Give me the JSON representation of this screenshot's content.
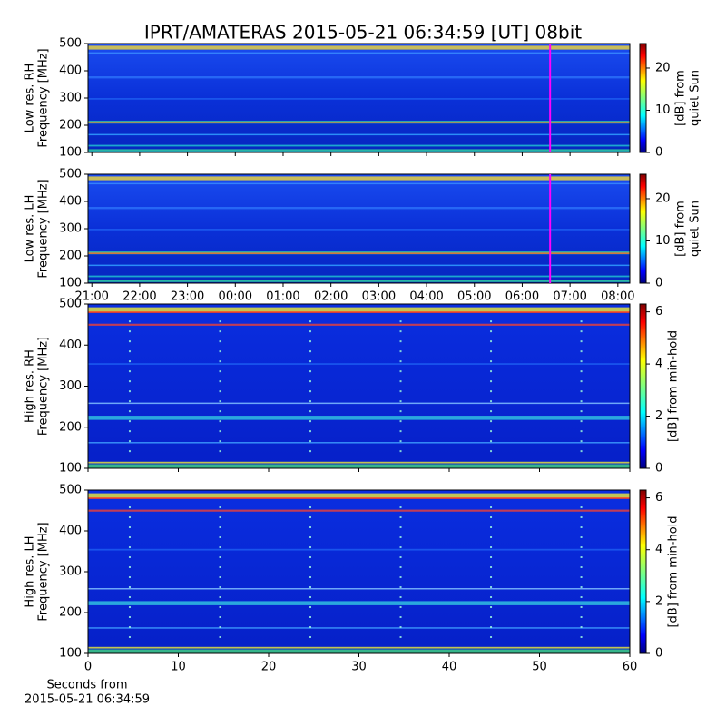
{
  "title": "IPRT/AMATERAS 2015-05-21 06:34:59 [UT]   08bit",
  "chart_data": [
    {
      "type": "heatmap",
      "ylabel": [
        "Low res. RH",
        "Frequency [MHz]"
      ],
      "ylim": [
        100,
        500
      ],
      "yticks": [
        100,
        200,
        300,
        400,
        500
      ],
      "xlim": [
        20.92,
        32.25
      ],
      "marker_x": 30.583,
      "marker_color": "#ff00ff",
      "colorbar": {
        "label": [
          "[dB] from",
          "quiet Sun"
        ],
        "lim": [
          0,
          25.8
        ],
        "ticks": [
          0,
          10,
          20
        ],
        "colormap": "jet"
      }
    },
    {
      "type": "heatmap",
      "ylabel": [
        "Low res. LH",
        "Frequency [MHz]"
      ],
      "ylim": [
        100,
        500
      ],
      "yticks": [
        100,
        200,
        300,
        400,
        500
      ],
      "xlim": [
        20.92,
        32.25
      ],
      "xticks": [
        {
          "value": 21,
          "label": "21:00"
        },
        {
          "value": 22,
          "label": "22:00"
        },
        {
          "value": 23,
          "label": "23:00"
        },
        {
          "value": 24,
          "label": "00:00"
        },
        {
          "value": 25,
          "label": "01:00"
        },
        {
          "value": 26,
          "label": "02:00"
        },
        {
          "value": 27,
          "label": "03:00"
        },
        {
          "value": 28,
          "label": "04:00"
        },
        {
          "value": 29,
          "label": "05:00"
        },
        {
          "value": 30,
          "label": "06:00"
        },
        {
          "value": 31,
          "label": "07:00"
        },
        {
          "value": 32,
          "label": "08:00"
        }
      ],
      "marker_x": 30.583,
      "marker_color": "#ff00ff",
      "colorbar": {
        "label": [
          "[dB] from",
          "quiet Sun"
        ],
        "lim": [
          0,
          25.8
        ],
        "ticks": [
          0,
          10,
          20
        ],
        "colormap": "jet"
      }
    },
    {
      "type": "heatmap",
      "ylabel": [
        "High res. RH",
        "Frequency [MHz]"
      ],
      "ylim": [
        100,
        500
      ],
      "yticks": [
        100,
        200,
        300,
        400,
        500
      ],
      "xlim": [
        0,
        60
      ],
      "colorbar": {
        "label": [
          "[dB] from min-hold"
        ],
        "lim": [
          0,
          6.3
        ],
        "ticks": [
          0,
          2,
          4,
          6
        ],
        "colormap": "jet"
      }
    },
    {
      "type": "heatmap",
      "ylabel": [
        "High res. LH",
        "Frequency [MHz]"
      ],
      "ylim": [
        100,
        500
      ],
      "yticks": [
        100,
        200,
        300,
        400,
        500
      ],
      "xlim": [
        0,
        60
      ],
      "xticks": [
        0,
        10,
        20,
        30,
        40,
        50,
        60
      ],
      "xlabel": [
        "Seconds from",
        "2015-05-21 06:34:59"
      ],
      "colorbar": {
        "label": [
          "[dB] from min-hold"
        ],
        "lim": [
          0,
          6.3
        ],
        "ticks": [
          0,
          2,
          4,
          6
        ],
        "colormap": "jet"
      }
    }
  ]
}
